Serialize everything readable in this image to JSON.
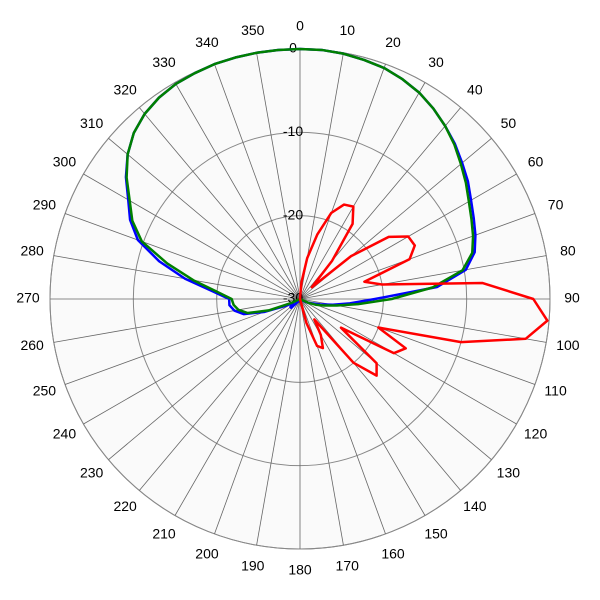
{
  "chart_data": {
    "type": "polar",
    "x": [
      0,
      5,
      10,
      15,
      20,
      25,
      30,
      35,
      40,
      45,
      50,
      55,
      60,
      65,
      70,
      75,
      80,
      85,
      90,
      95,
      100,
      105,
      110,
      115,
      120,
      125,
      130,
      135,
      140,
      145,
      150,
      155,
      160,
      165,
      170,
      175,
      180,
      185,
      190,
      195,
      200,
      205,
      210,
      215,
      220,
      225,
      230,
      235,
      240,
      245,
      250,
      255,
      260,
      265,
      270,
      275,
      280,
      285,
      290,
      295,
      300,
      305,
      310,
      315,
      320,
      325,
      330,
      335,
      340,
      345,
      350,
      355
    ],
    "xticks": [
      0,
      10,
      20,
      30,
      40,
      50,
      60,
      70,
      80,
      90,
      100,
      110,
      120,
      130,
      140,
      150,
      160,
      170,
      180,
      190,
      200,
      210,
      220,
      230,
      240,
      250,
      260,
      270,
      280,
      290,
      300,
      310,
      320,
      330,
      340,
      350
    ],
    "ylim": [
      -30,
      0
    ],
    "yticks": [
      -30,
      -20,
      -10,
      0
    ],
    "grid": true,
    "series": [
      {
        "color": "#0000ff",
        "values": [
          0,
          0,
          -0.1,
          -0.3,
          -0.5,
          -0.9,
          -1.4,
          -2.1,
          -2.9,
          -3.7,
          -4.6,
          -5.4,
          -6.3,
          -7,
          -7.6,
          -8.3,
          -9.8,
          -13.5,
          -21,
          -24,
          -26,
          -27.5,
          -28.5,
          -29,
          -29.5,
          -30,
          -30,
          -30,
          -30,
          -30,
          -30,
          -30,
          -30,
          -30,
          -30,
          -30,
          -30,
          -30,
          -30,
          -30,
          -30,
          -30,
          -30,
          -30,
          -29.5,
          -28.5,
          -28.5,
          -29,
          -29,
          -28,
          -25.5,
          -23,
          -22,
          -21.5,
          -21.5,
          -19.5,
          -16,
          -12.5,
          -9.3,
          -7.5,
          -6.2,
          -4.5,
          -3,
          -1.8,
          -1,
          -0.5,
          -0.2,
          -0.1,
          0,
          0,
          0,
          0
        ]
      },
      {
        "color": "#008000",
        "values": [
          0,
          0,
          -0.1,
          -0.3,
          -0.5,
          -0.9,
          -1.4,
          -2.1,
          -2.9,
          -3.8,
          -4.8,
          -5.7,
          -6.6,
          -7.3,
          -7.9,
          -8.6,
          -10.2,
          -14,
          -19,
          -23,
          -25.5,
          -27,
          -28,
          -29,
          -30,
          -30,
          -30,
          -30,
          -30,
          -30,
          -30,
          -30,
          -30,
          -30,
          -30,
          -30,
          -30,
          -30,
          -30,
          -30,
          -30,
          -30,
          -30,
          -30,
          -30,
          -30,
          -30,
          -30,
          -30,
          -29,
          -26,
          -23.5,
          -22.5,
          -22,
          -21.8,
          -20,
          -17,
          -13.5,
          -9.8,
          -7.8,
          -6.4,
          -4.6,
          -3,
          -1.8,
          -1,
          -0.5,
          -0.2,
          -0.1,
          0,
          0,
          0,
          0
        ]
      },
      {
        "color": "#ff0000",
        "values": [
          -30,
          -28,
          -25,
          -22,
          -19,
          -17.5,
          -17.2,
          -19,
          -24,
          -28,
          -22,
          -17,
          -15,
          -14.8,
          -16,
          -22,
          -20,
          -8,
          -2,
          -0.2,
          -2.5,
          -10,
          -20,
          -16,
          -17,
          -24,
          -18,
          -17,
          -20,
          -27,
          -25,
          -23.5,
          -24,
          -27,
          -30,
          -30,
          -30,
          -30,
          -30,
          -30,
          -30,
          -30,
          -30,
          -30,
          -30,
          -30,
          -30,
          -30,
          -30,
          -30,
          -30,
          -30,
          -30,
          -30,
          -30,
          -30,
          -30,
          -30,
          -30,
          -30,
          -30,
          -30,
          -30,
          -30,
          -30,
          -30,
          -30,
          -30,
          -30,
          -30,
          -30,
          -30
        ]
      }
    ]
  }
}
